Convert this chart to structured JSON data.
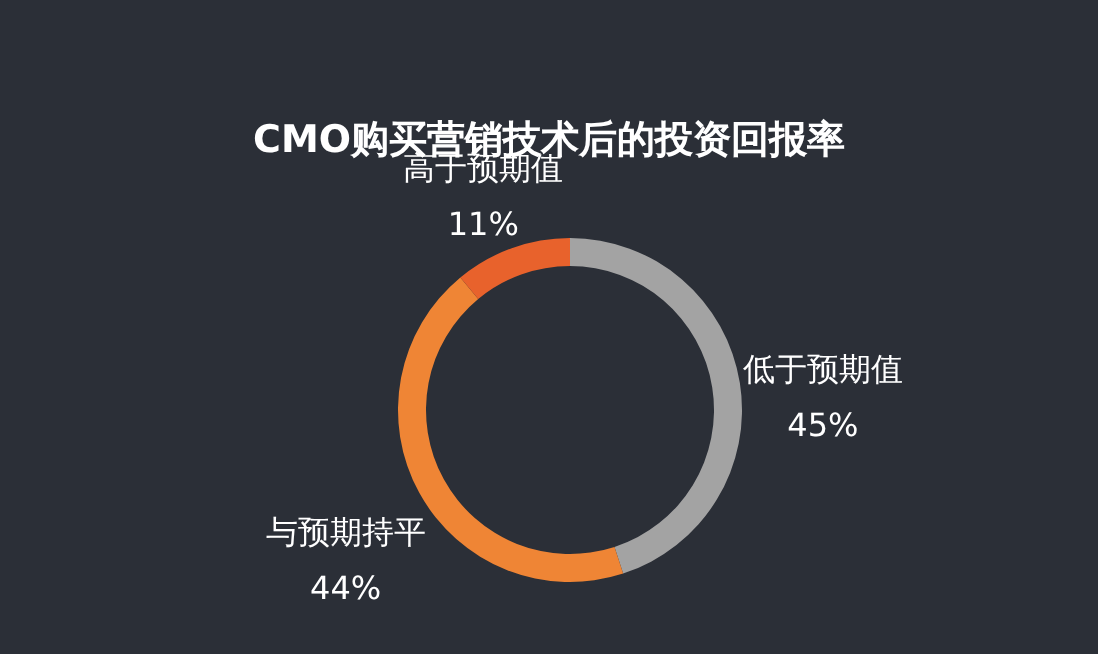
{
  "chart_data": {
    "type": "donut",
    "title": "CMO购买营销技术后的投资回报率",
    "categories": [
      "低于预期值",
      "与预期持平",
      "高于预期值"
    ],
    "values": [
      45,
      44,
      11
    ],
    "value_labels": [
      "45%",
      "44%",
      "11%"
    ],
    "colors": [
      "#a3a3a3",
      "#ef8535",
      "#e8622c"
    ],
    "legend": false
  }
}
